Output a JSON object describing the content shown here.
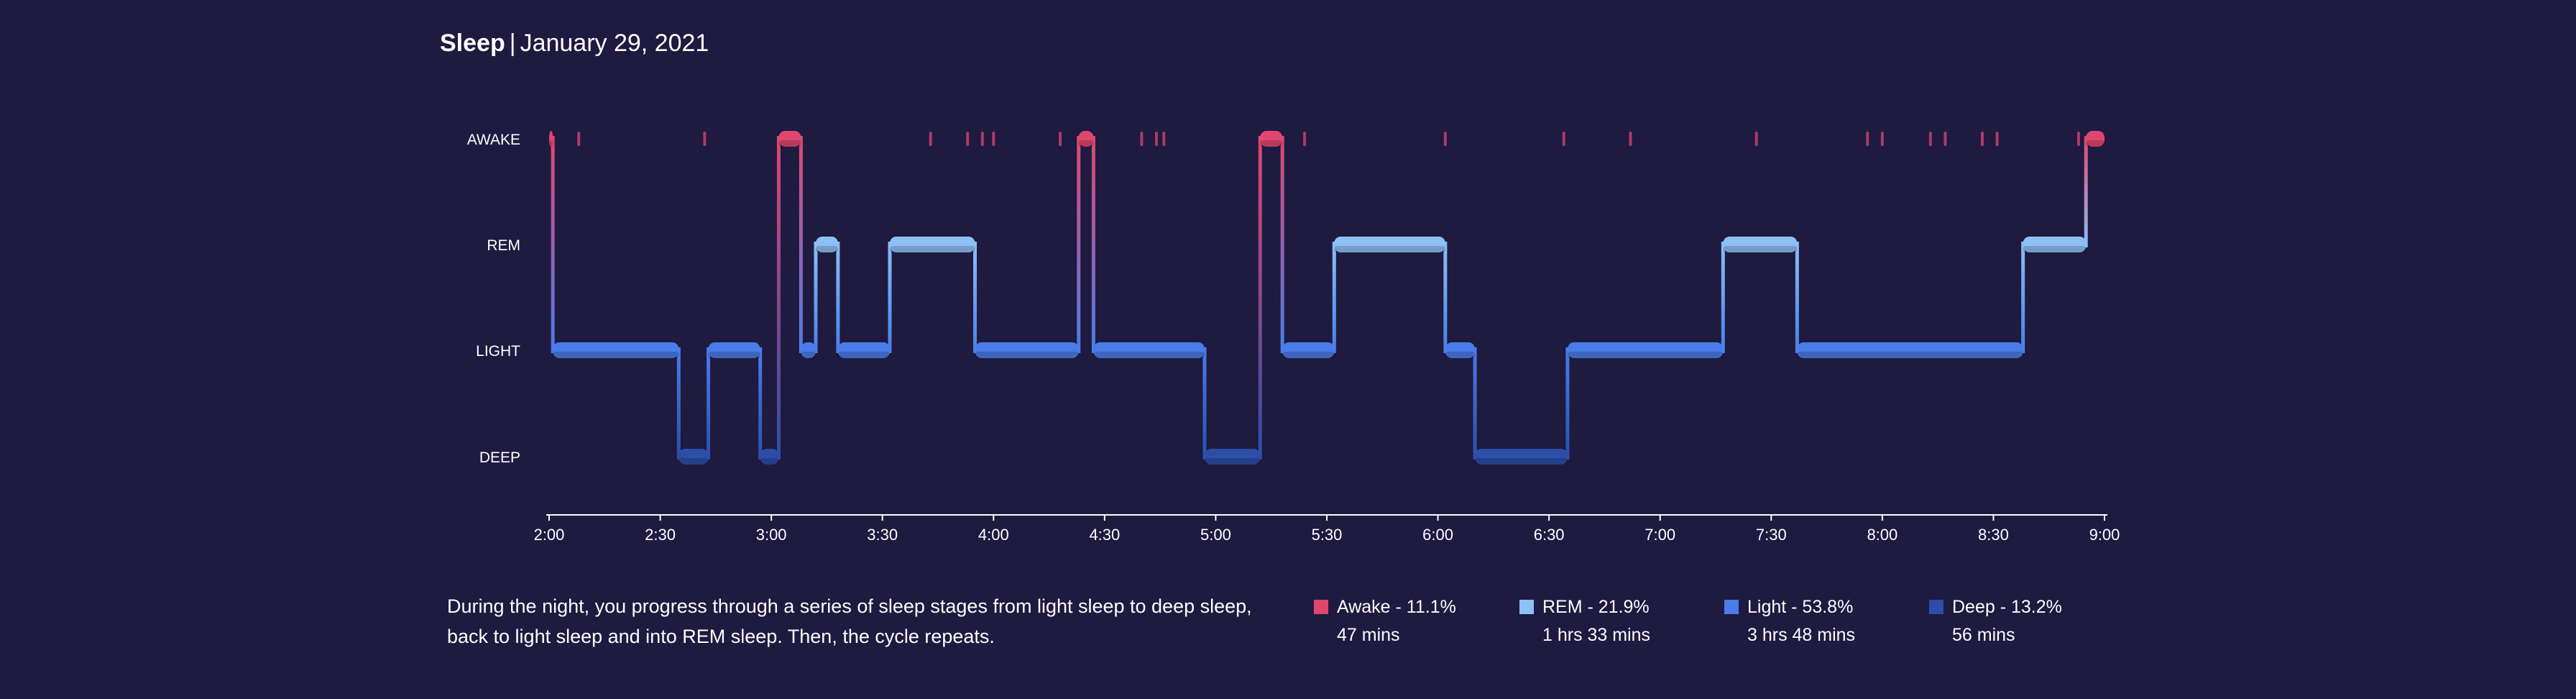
{
  "header": {
    "title": "Sleep",
    "separator": "|",
    "date": "January 29, 2021"
  },
  "description": "During the night, you progress through a series of sleep stages from light sleep to deep sleep, back to light sleep and into REM sleep. Then, the cycle repeats.",
  "legend": [
    {
      "id": "awake",
      "label": "Awake - 11.1%",
      "duration": "47 mins",
      "color": "#e0476f"
    },
    {
      "id": "rem",
      "label": "REM - 21.9%",
      "duration": "1 hrs 33 mins",
      "color": "#8ec0f6"
    },
    {
      "id": "light",
      "label": "Light - 53.8%",
      "duration": "3 hrs 48 mins",
      "color": "#4a7de9"
    },
    {
      "id": "deep",
      "label": "Deep - 13.2%",
      "duration": "56 mins",
      "color": "#2d4ea8"
    }
  ],
  "chart_data": {
    "type": "area",
    "x_axis": {
      "ticks": [
        "2:00",
        "2:30",
        "3:00",
        "3:30",
        "4:00",
        "4:30",
        "5:00",
        "5:30",
        "6:00",
        "6:30",
        "7:00",
        "7:30",
        "8:00",
        "8:30",
        "9:00"
      ],
      "start": "2:00",
      "end": "9:00"
    },
    "y_axis": {
      "categories": [
        "AWAKE",
        "REM",
        "LIGHT",
        "DEEP"
      ]
    },
    "colors": {
      "AWAKE": "#e0476f",
      "REM": "#8ec0f6",
      "LIGHT": "#4a7de9",
      "DEEP": "#2d4ea8"
    },
    "segments": [
      {
        "stage": "AWAKE",
        "start": "2:00",
        "end": "2:01"
      },
      {
        "stage": "LIGHT",
        "start": "2:01",
        "end": "2:35"
      },
      {
        "stage": "DEEP",
        "start": "2:35",
        "end": "2:43"
      },
      {
        "stage": "LIGHT",
        "start": "2:43",
        "end": "2:57"
      },
      {
        "stage": "DEEP",
        "start": "2:57",
        "end": "3:02"
      },
      {
        "stage": "AWAKE",
        "start": "3:02",
        "end": "3:08"
      },
      {
        "stage": "LIGHT",
        "start": "3:08",
        "end": "3:12"
      },
      {
        "stage": "REM",
        "start": "3:12",
        "end": "3:18"
      },
      {
        "stage": "LIGHT",
        "start": "3:18",
        "end": "3:32"
      },
      {
        "stage": "REM",
        "start": "3:32",
        "end": "3:55"
      },
      {
        "stage": "LIGHT",
        "start": "3:55",
        "end": "4:23"
      },
      {
        "stage": "AWAKE",
        "start": "4:23",
        "end": "4:27"
      },
      {
        "stage": "LIGHT",
        "start": "4:27",
        "end": "4:57"
      },
      {
        "stage": "DEEP",
        "start": "4:57",
        "end": "5:12"
      },
      {
        "stage": "AWAKE",
        "start": "5:12",
        "end": "5:18"
      },
      {
        "stage": "LIGHT",
        "start": "5:18",
        "end": "5:32"
      },
      {
        "stage": "REM",
        "start": "5:32",
        "end": "6:02"
      },
      {
        "stage": "LIGHT",
        "start": "6:02",
        "end": "6:10"
      },
      {
        "stage": "DEEP",
        "start": "6:10",
        "end": "6:35"
      },
      {
        "stage": "LIGHT",
        "start": "6:35",
        "end": "7:17"
      },
      {
        "stage": "REM",
        "start": "7:17",
        "end": "7:37"
      },
      {
        "stage": "LIGHT",
        "start": "7:37",
        "end": "8:38"
      },
      {
        "stage": "REM",
        "start": "8:38",
        "end": "8:55"
      },
      {
        "stage": "AWAKE",
        "start": "8:55",
        "end": "9:00"
      }
    ],
    "brief_awakenings": [
      "2:08",
      "2:42",
      "3:43",
      "3:53",
      "3:57",
      "4:00",
      "4:18",
      "4:40",
      "4:44",
      "4:46",
      "5:24",
      "6:02",
      "6:34",
      "6:52",
      "7:26",
      "7:56",
      "8:00",
      "8:13",
      "8:17",
      "8:27",
      "8:31",
      "8:53"
    ]
  }
}
